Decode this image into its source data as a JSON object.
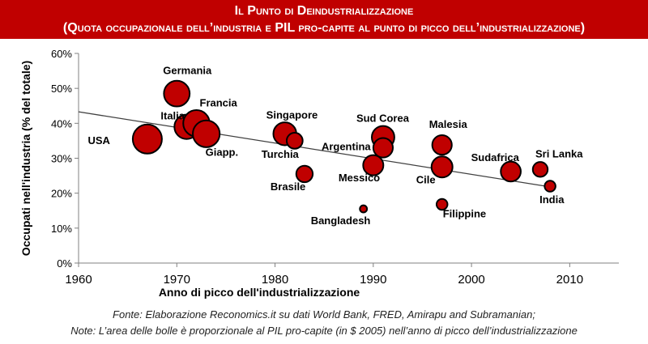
{
  "header": {
    "title": "Il Punto di Deindustrializzazione",
    "subtitle": "(Quota occupazionale dell’industria e PIL pro-capite al punto di picco dell’industrializzazione)"
  },
  "footer": {
    "source": "Fonte: Elaborazione Reconomics.it su dati World Bank, FRED, Amirapu and Subramanian;",
    "note": "Note: L’area delle bolle è proporzionale al PIL pro-capite (in $ 2005) nell’anno di picco dell’industrializzazione"
  },
  "colors": {
    "bubble": "#c00000",
    "trend": "#404040",
    "axis": "#808080",
    "header": "#c00000"
  },
  "chart_data": {
    "type": "scatter",
    "xlabel": "Anno di picco dell'industrializzazione",
    "ylabel": "Occupati nell'industria (% del totale)",
    "xlim": [
      1960,
      2015
    ],
    "ylim": [
      0,
      60
    ],
    "xticks": [
      1960,
      1970,
      1980,
      1990,
      2000,
      2010
    ],
    "yticks": [
      0,
      10,
      20,
      30,
      40,
      50,
      60
    ],
    "ytick_labels": [
      "0%",
      "10%",
      "20%",
      "30%",
      "40%",
      "50%",
      "60%"
    ],
    "grid": false,
    "trendline": {
      "x": [
        1960,
        2008
      ],
      "y": [
        43.3,
        21.8
      ]
    },
    "points": [
      {
        "label": "USA",
        "x": 1967,
        "y": 35.5,
        "size": 1.0
      },
      {
        "label": "Germania",
        "x": 1970,
        "y": 48.5,
        "size": 0.78
      },
      {
        "label": "Italia",
        "x": 1971,
        "y": 39.0,
        "size": 0.7
      },
      {
        "label": "Francia",
        "x": 1972,
        "y": 40.0,
        "size": 0.82
      },
      {
        "label": "Giapp.",
        "x": 1973,
        "y": 37.0,
        "size": 0.85
      },
      {
        "label": "Singapore",
        "x": 1981,
        "y": 37.0,
        "size": 0.62
      },
      {
        "label": "Turchia",
        "x": 1982,
        "y": 35.0,
        "size": 0.3
      },
      {
        "label": "Brasile",
        "x": 1983,
        "y": 25.5,
        "size": 0.32
      },
      {
        "label": "Bangladesh",
        "x": 1989,
        "y": 15.5,
        "size": 0.06
      },
      {
        "label": "Messico",
        "x": 1990,
        "y": 28.0,
        "size": 0.48
      },
      {
        "label": "Sud Corea",
        "x": 1991,
        "y": 36.0,
        "size": 0.6
      },
      {
        "label": "Argentina",
        "x": 1991,
        "y": 33.0,
        "size": 0.45
      },
      {
        "label": "Malesia",
        "x": 1997,
        "y": 33.8,
        "size": 0.45
      },
      {
        "label": "Cile",
        "x": 1997,
        "y": 27.5,
        "size": 0.52
      },
      {
        "label": "Filippine",
        "x": 1997,
        "y": 16.8,
        "size": 0.14
      },
      {
        "label": "Sudafrica",
        "x": 2004,
        "y": 26.2,
        "size": 0.47
      },
      {
        "label": "Sri Lanka",
        "x": 2007,
        "y": 26.8,
        "size": 0.26
      },
      {
        "label": "India",
        "x": 2008,
        "y": 22.0,
        "size": 0.14
      }
    ]
  }
}
